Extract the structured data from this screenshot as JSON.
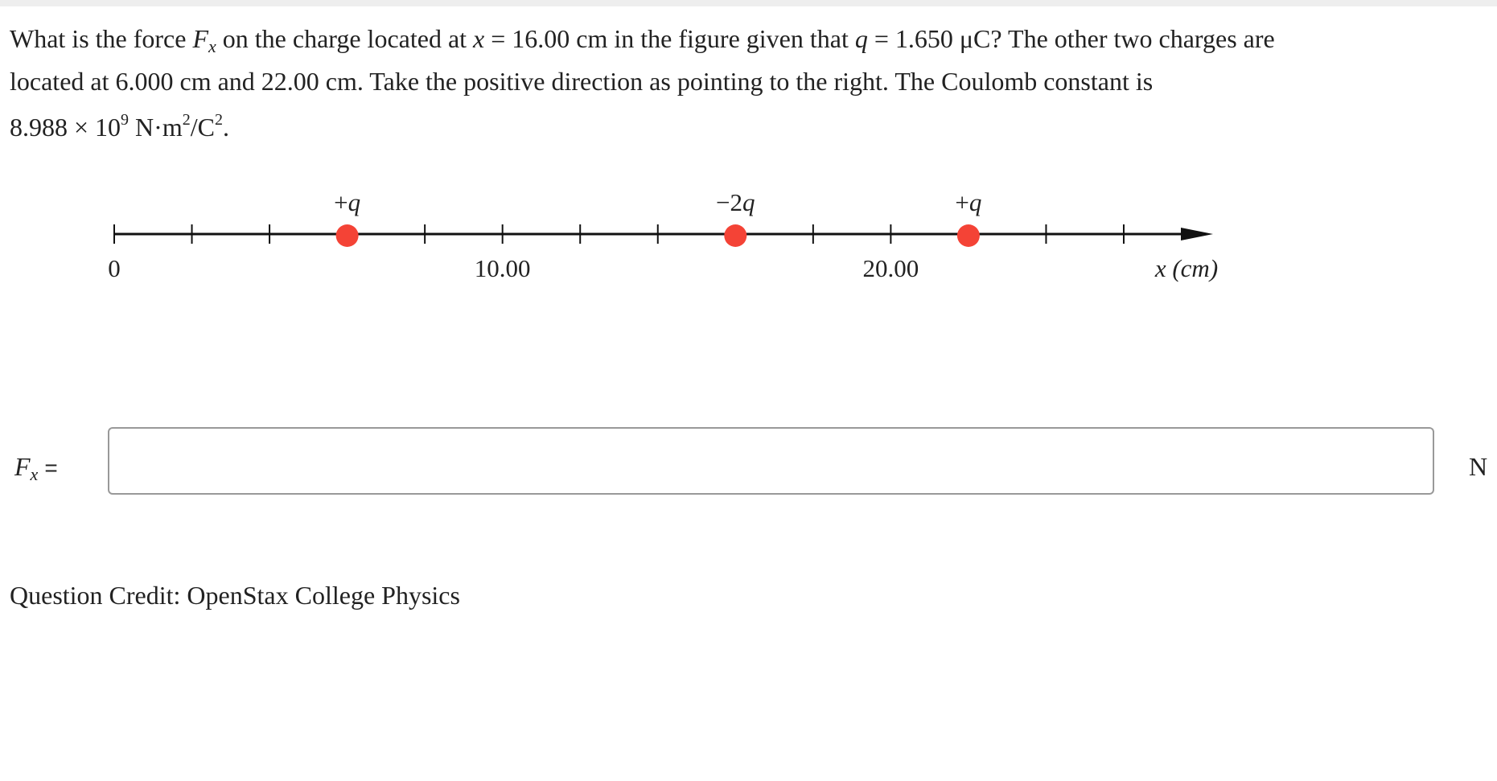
{
  "question": {
    "lines": [
      [
        {
          "text": "What is the force ",
          "style": "plain"
        },
        {
          "text": "F",
          "style": "italic"
        },
        {
          "text": "x",
          "style": "sub"
        },
        {
          "text": " on the charge located at ",
          "style": "plain"
        },
        {
          "text": "x",
          "style": "italic"
        },
        {
          "text": " = 16.00 cm in the figure given that ",
          "style": "plain"
        },
        {
          "text": "q",
          "style": "italic"
        },
        {
          "text": " = 1.650 μC? The other two charges are",
          "style": "plain"
        }
      ],
      [
        {
          "text": "located at 6.000 cm and 22.00 cm. Take the positive direction as pointing to the right. The Coulomb constant is",
          "style": "plain"
        }
      ],
      [
        {
          "text": "8.988 × 10",
          "style": "plain"
        },
        {
          "text": "9",
          "style": "sup"
        },
        {
          "text": " N·m",
          "style": "plain"
        },
        {
          "text": "2",
          "style": "sup"
        },
        {
          "text": "/C",
          "style": "plain"
        },
        {
          "text": "2",
          "style": "sup"
        },
        {
          "text": ".",
          "style": "plain"
        }
      ]
    ]
  },
  "figure": {
    "xlim": [
      0,
      28.3
    ],
    "xticks": [
      0,
      2,
      4,
      8,
      10,
      12,
      14,
      18,
      20,
      24,
      26
    ],
    "xtick_labels": [
      0,
      {
        "value": 10,
        "label": "10.00"
      },
      {
        "value": 20,
        "label": "20.00"
      }
    ],
    "axis_label": "x (cm)",
    "charges": [
      {
        "x": 6,
        "sign": "+",
        "symbol": "q"
      },
      {
        "x": 16,
        "sign": "−2",
        "symbol": "q"
      },
      {
        "x": 22,
        "sign": "+",
        "symbol": "q"
      }
    ],
    "color": "#f44336"
  },
  "answer": {
    "symbol": "F",
    "subscript": "x",
    "equals": "=",
    "unit": "N"
  },
  "credit": "Question Credit: OpenStax College Physics"
}
